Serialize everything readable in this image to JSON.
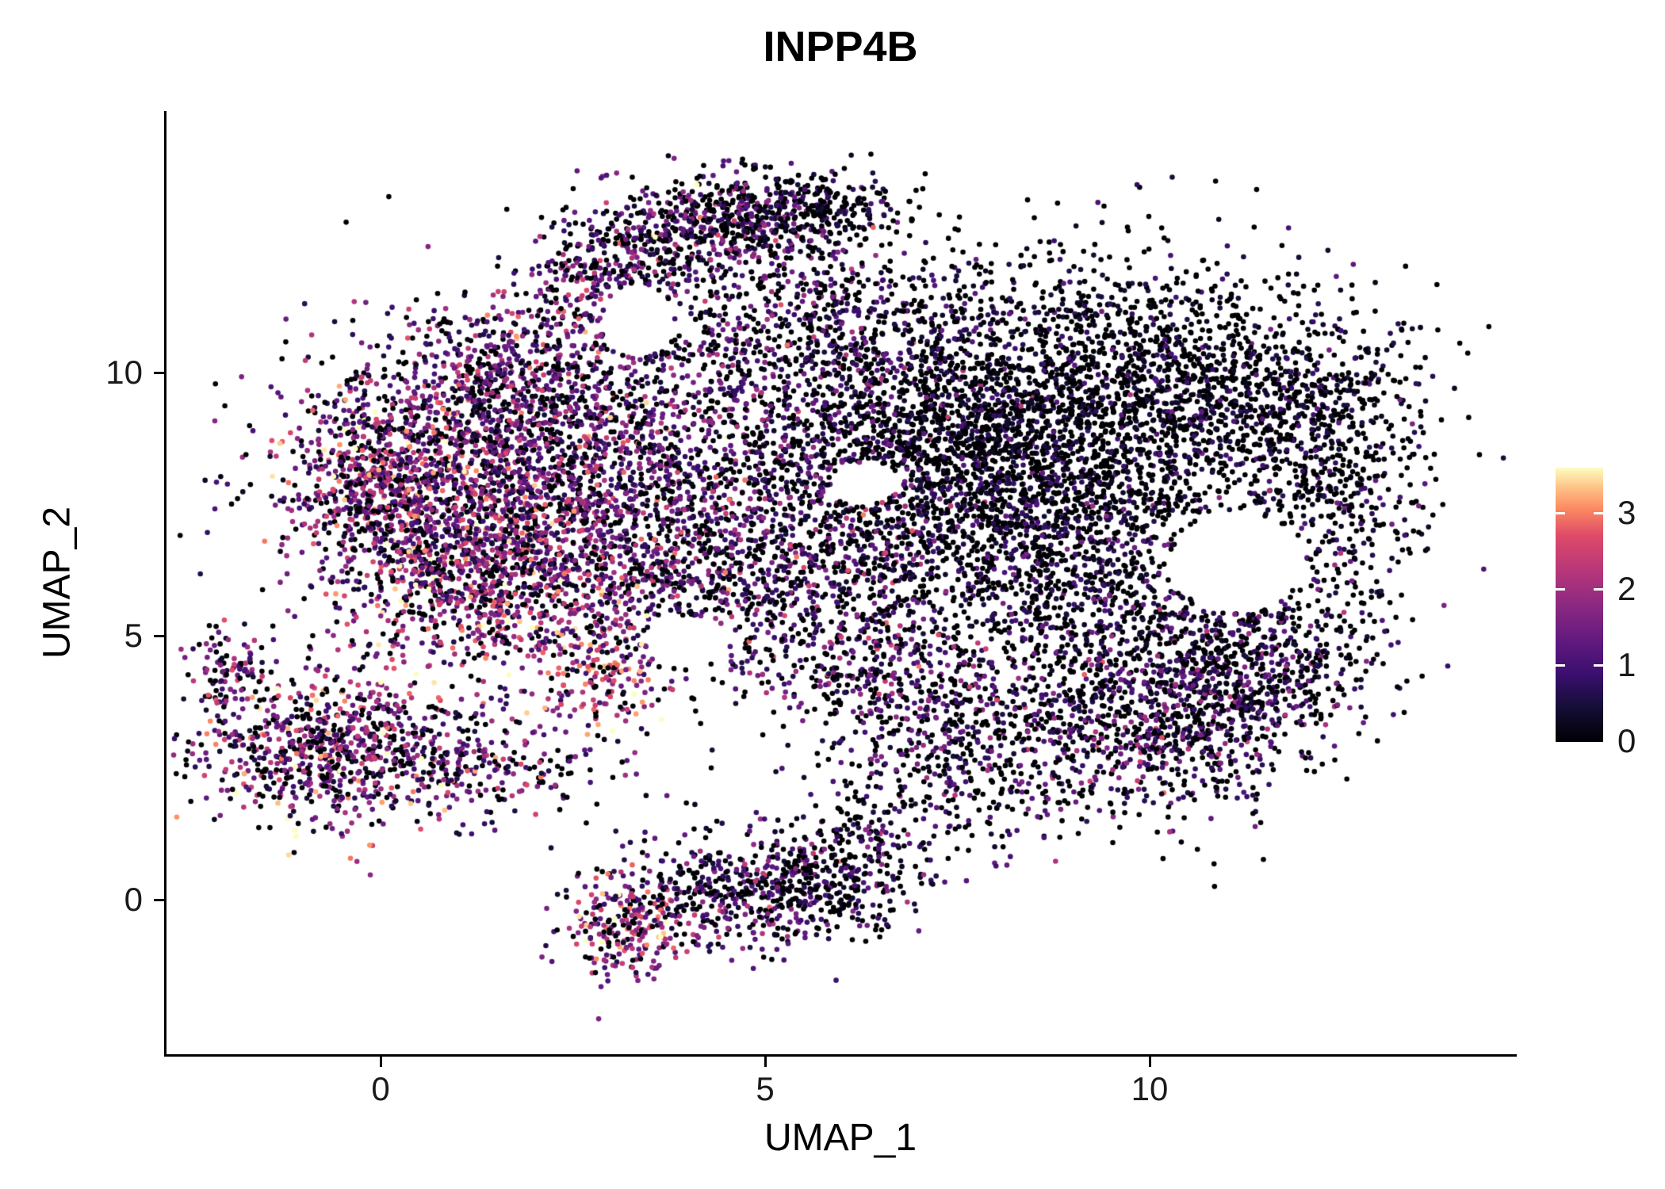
{
  "title": "INPP4B",
  "chart_data": {
    "type": "scatter",
    "title": "INPP4B",
    "xlabel": "UMAP_1",
    "ylabel": "UMAP_2",
    "xlim": [
      -2.8,
      14.7
    ],
    "ylim": [
      -2.9,
      15.0
    ],
    "x_ticks": [
      0,
      5,
      10
    ],
    "y_ticks": [
      0,
      5,
      10
    ],
    "grid": false,
    "point_radius_px": 3.3,
    "seed": 20240421,
    "legend": {
      "position": "right",
      "ticks": [
        0,
        1,
        2,
        3
      ],
      "domain": [
        0,
        3.6
      ]
    },
    "colormap": {
      "name": "magma",
      "stops": [
        [
          0,
          "#000004"
        ],
        [
          0.125,
          "#140e36"
        ],
        [
          0.25,
          "#3b0f70"
        ],
        [
          0.375,
          "#641a80"
        ],
        [
          0.5,
          "#8c2981"
        ],
        [
          0.625,
          "#b73779"
        ],
        [
          0.75,
          "#de4968"
        ],
        [
          0.85,
          "#fc8961"
        ],
        [
          0.93,
          "#fec488"
        ],
        [
          1,
          "#fcfdbf"
        ]
      ]
    },
    "holes": [
      {
        "cx": 11.15,
        "cy": 6.4,
        "rx": 0.85,
        "ry": 0.95
      },
      {
        "cx": 6.3,
        "cy": 7.9,
        "rx": 0.45,
        "ry": 0.4
      },
      {
        "cx": 3.35,
        "cy": 11.0,
        "rx": 0.45,
        "ry": 0.7
      },
      {
        "cx": 4.0,
        "cy": 4.9,
        "rx": 0.55,
        "ry": 0.5
      }
    ],
    "clusters": [
      {
        "name": "left-core",
        "cx": 1.1,
        "cy": 7.9,
        "sx": 1.15,
        "sy": 1.35,
        "n": 1700,
        "mean": 1.5,
        "sd": 0.9,
        "zero": 0.18
      },
      {
        "name": "left-edge",
        "cx": -0.1,
        "cy": 7.9,
        "sx": 0.45,
        "sy": 0.85,
        "n": 350,
        "mean": 1.5,
        "sd": 0.9,
        "zero": 0.2
      },
      {
        "name": "left-bottom",
        "cx": 1.3,
        "cy": 6.0,
        "sx": 0.9,
        "sy": 0.8,
        "n": 600,
        "mean": 1.6,
        "sd": 0.95,
        "zero": 0.18
      },
      {
        "name": "left-top",
        "cx": 1.9,
        "cy": 9.9,
        "sx": 0.95,
        "sy": 0.75,
        "n": 550,
        "mean": 1.1,
        "sd": 0.8,
        "zero": 0.25
      },
      {
        "name": "mid-left",
        "cx": 3.1,
        "cy": 7.2,
        "sx": 1.0,
        "sy": 1.2,
        "n": 800,
        "mean": 1.2,
        "sd": 0.85,
        "zero": 0.25
      },
      {
        "name": "top-arm-left",
        "cx": 3.0,
        "cy": 11.9,
        "sx": 0.55,
        "sy": 0.6,
        "n": 300,
        "mean": 1.2,
        "sd": 0.9,
        "zero": 0.25
      },
      {
        "name": "top-arm-mid",
        "cx": 4.3,
        "cy": 12.8,
        "sx": 0.75,
        "sy": 0.45,
        "n": 450,
        "mean": 1.0,
        "sd": 0.85,
        "zero": 0.3
      },
      {
        "name": "top-arm-right",
        "cx": 5.6,
        "cy": 13.1,
        "sx": 0.65,
        "sy": 0.35,
        "n": 300,
        "mean": 0.45,
        "sd": 0.6,
        "zero": 0.45
      },
      {
        "name": "top-mid-sparse",
        "cx": 5.3,
        "cy": 11.2,
        "sx": 1.2,
        "sy": 0.9,
        "n": 500,
        "mean": 0.7,
        "sd": 0.7,
        "zero": 0.35
      },
      {
        "name": "center",
        "cx": 5.6,
        "cy": 8.6,
        "sx": 1.5,
        "sy": 1.4,
        "n": 1100,
        "mean": 0.8,
        "sd": 0.75,
        "zero": 0.3
      },
      {
        "name": "center-low",
        "cx": 5.0,
        "cy": 6.1,
        "sx": 1.2,
        "sy": 0.9,
        "n": 650,
        "mean": 0.9,
        "sd": 0.8,
        "zero": 0.3
      },
      {
        "name": "right-core-dark",
        "cx": 8.3,
        "cy": 8.7,
        "sx": 1.45,
        "sy": 1.25,
        "n": 2300,
        "mean": 0.3,
        "sd": 0.45,
        "zero": 0.45
      },
      {
        "name": "right-mid",
        "cx": 8.6,
        "cy": 6.4,
        "sx": 1.3,
        "sy": 0.95,
        "n": 800,
        "mean": 0.5,
        "sd": 0.6,
        "zero": 0.4
      },
      {
        "name": "top-right-sparse",
        "cx": 9.6,
        "cy": 11.0,
        "sx": 1.5,
        "sy": 0.75,
        "n": 380,
        "mean": 0.3,
        "sd": 0.5,
        "zero": 0.5
      },
      {
        "name": "far-right-top",
        "cx": 11.2,
        "cy": 9.6,
        "sx": 1.1,
        "sy": 0.85,
        "n": 750,
        "mean": 0.35,
        "sd": 0.5,
        "zero": 0.45
      },
      {
        "name": "far-right-edge",
        "cx": 12.4,
        "cy": 7.8,
        "sx": 0.6,
        "sy": 1.2,
        "n": 450,
        "mean": 0.4,
        "sd": 0.55,
        "zero": 0.45
      },
      {
        "name": "right-ring-bottom",
        "cx": 10.6,
        "cy": 5.0,
        "sx": 1.2,
        "sy": 0.75,
        "n": 550,
        "mean": 0.55,
        "sd": 0.65,
        "zero": 0.4
      },
      {
        "name": "right-lower-blob",
        "cx": 10.0,
        "cy": 3.3,
        "sx": 0.95,
        "sy": 0.85,
        "n": 750,
        "mean": 0.8,
        "sd": 0.8,
        "zero": 0.3
      },
      {
        "name": "right-lower-ext",
        "cx": 11.4,
        "cy": 4.0,
        "sx": 0.7,
        "sy": 0.65,
        "n": 300,
        "mean": 0.6,
        "sd": 0.7,
        "zero": 0.35
      },
      {
        "name": "mid-bottom-band",
        "cx": 7.6,
        "cy": 3.3,
        "sx": 1.05,
        "sy": 0.7,
        "n": 450,
        "mean": 0.7,
        "sd": 0.75,
        "zero": 0.35
      },
      {
        "name": "band-connect",
        "cx": 6.3,
        "cy": 4.4,
        "sx": 0.8,
        "sy": 0.5,
        "n": 220,
        "mean": 0.9,
        "sd": 0.8,
        "zero": 0.3
      },
      {
        "name": "sparse-overall",
        "cx": 6.5,
        "cy": 8.0,
        "sx": 3.2,
        "sy": 2.6,
        "n": 350,
        "mean": 0.6,
        "sd": 0.7,
        "zero": 0.4
      },
      {
        "name": "lowerleft-core",
        "cx": -0.6,
        "cy": 2.9,
        "sx": 0.95,
        "sy": 0.75,
        "n": 850,
        "mean": 1.4,
        "sd": 1.0,
        "zero": 0.22
      },
      {
        "name": "lowerleft-arm",
        "cx": -2.0,
        "cy": 4.3,
        "sx": 0.22,
        "sy": 0.45,
        "n": 90,
        "mean": 1.1,
        "sd": 0.8,
        "zero": 0.3
      },
      {
        "name": "lowerleft-trail",
        "cx": 1.6,
        "cy": 2.5,
        "sx": 0.8,
        "sy": 0.4,
        "n": 170,
        "mean": 1.3,
        "sd": 0.9,
        "zero": 0.25
      },
      {
        "name": "bright-streak",
        "cx": 2.9,
        "cy": 4.4,
        "sx": 0.45,
        "sy": 0.7,
        "n": 200,
        "mean": 1.9,
        "sd": 1.0,
        "zero": 0.12
      },
      {
        "name": "bottom-core",
        "cx": 4.9,
        "cy": 0.2,
        "sx": 0.95,
        "sy": 0.55,
        "n": 600,
        "mean": 0.8,
        "sd": 0.75,
        "zero": 0.3
      },
      {
        "name": "bottom-left-tip",
        "cx": 3.3,
        "cy": -0.5,
        "sx": 0.42,
        "sy": 0.5,
        "n": 230,
        "mean": 1.7,
        "sd": 1.0,
        "zero": 0.15
      },
      {
        "name": "bottom-right-ext",
        "cx": 6.1,
        "cy": 0.6,
        "sx": 0.45,
        "sy": 0.5,
        "n": 150,
        "mean": 0.7,
        "sd": 0.7,
        "zero": 0.35
      },
      {
        "name": "bottom-mid-sparse",
        "cx": 7.4,
        "cy": 1.8,
        "sx": 0.9,
        "sy": 0.5,
        "n": 160,
        "mean": 0.6,
        "sd": 0.65,
        "zero": 0.4
      }
    ]
  }
}
